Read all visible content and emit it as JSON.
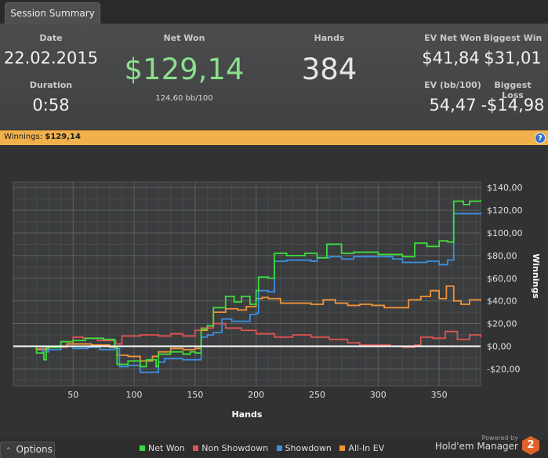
{
  "tab": {
    "label": "Session Summary"
  },
  "summary": {
    "date_label": "Date",
    "date_value": "22.02.2015",
    "duration_label": "Duration",
    "duration_value": "0:58",
    "netwon_label": "Net Won",
    "netwon_value": "$129,14",
    "netwon_sub": "124,60 bb/100",
    "hands_label": "Hands",
    "hands_value": "384",
    "evnet_label": "EV Net Won",
    "evnet_value": "$41,84",
    "evbb_label": "EV (bb/100)",
    "evbb_value": "54,47",
    "bigwin_label": "Biggest Win",
    "bigwin_value": "$31,01",
    "bigloss_label": "Biggest Loss",
    "bigloss_value": "-$14,98"
  },
  "bar": {
    "prefix": "Winnings:",
    "value": "$129,14",
    "help": "?"
  },
  "colors": {
    "net_won": "#3ddc3d",
    "non_showdown": "#e25252",
    "showdown": "#3b8fe0",
    "allin_ev": "#f09238",
    "accent": "#f0b14c"
  },
  "chart_data": {
    "type": "line",
    "title": "Winnings",
    "xlabel": "Hands",
    "ylabel": "Winnings",
    "xlim": [
      1,
      384
    ],
    "ylim": [
      -35,
      145
    ],
    "x_ticks": [
      50,
      100,
      150,
      200,
      250,
      300,
      350
    ],
    "x_tick_labels": [
      "50",
      "100",
      "150",
      "200",
      "250",
      "300",
      "350"
    ],
    "y_ticks": [
      -20,
      0,
      20,
      40,
      60,
      80,
      100,
      120,
      140
    ],
    "y_tick_labels": [
      "-$20,00",
      "$0,00",
      "$20,00",
      "$40,00",
      "$60,00",
      "$80,00",
      "$100,00",
      "$120,00",
      "$140,00"
    ],
    "series": [
      {
        "name": "Net Won",
        "color": "#3ddc3d",
        "points": [
          [
            1,
            0
          ],
          [
            15,
            0
          ],
          [
            20,
            -6
          ],
          [
            26,
            -12
          ],
          [
            28,
            -1
          ],
          [
            40,
            4
          ],
          [
            50,
            5
          ],
          [
            60,
            7
          ],
          [
            75,
            6
          ],
          [
            84,
            -1
          ],
          [
            86,
            -16
          ],
          [
            95,
            -13
          ],
          [
            105,
            -18
          ],
          [
            110,
            -12
          ],
          [
            118,
            -18
          ],
          [
            120,
            -7
          ],
          [
            130,
            -5
          ],
          [
            140,
            -7
          ],
          [
            146,
            -5
          ],
          [
            150,
            -6
          ],
          [
            155,
            15
          ],
          [
            160,
            18
          ],
          [
            165,
            34
          ],
          [
            175,
            44
          ],
          [
            182,
            39
          ],
          [
            188,
            44
          ],
          [
            195,
            37
          ],
          [
            200,
            49
          ],
          [
            202,
            61
          ],
          [
            210,
            60
          ],
          [
            215,
            82
          ],
          [
            225,
            80
          ],
          [
            235,
            80
          ],
          [
            240,
            82
          ],
          [
            250,
            78
          ],
          [
            258,
            90
          ],
          [
            270,
            82
          ],
          [
            280,
            83
          ],
          [
            300,
            81
          ],
          [
            315,
            81
          ],
          [
            320,
            79
          ],
          [
            330,
            91
          ],
          [
            340,
            88
          ],
          [
            350,
            93
          ],
          [
            357,
            92
          ],
          [
            362,
            128
          ],
          [
            370,
            125
          ],
          [
            375,
            128
          ],
          [
            384,
            129
          ]
        ]
      },
      {
        "name": "Non Showdown",
        "color": "#e25252",
        "points": [
          [
            1,
            0
          ],
          [
            20,
            -2
          ],
          [
            30,
            -1
          ],
          [
            45,
            2
          ],
          [
            50,
            8
          ],
          [
            58,
            7
          ],
          [
            70,
            5
          ],
          [
            85,
            2
          ],
          [
            90,
            9
          ],
          [
            105,
            10
          ],
          [
            120,
            9
          ],
          [
            130,
            11
          ],
          [
            140,
            9
          ],
          [
            150,
            14
          ],
          [
            155,
            16
          ],
          [
            165,
            20
          ],
          [
            175,
            16
          ],
          [
            188,
            14
          ],
          [
            200,
            11
          ],
          [
            215,
            8
          ],
          [
            230,
            10
          ],
          [
            245,
            8
          ],
          [
            260,
            6
          ],
          [
            275,
            3
          ],
          [
            285,
            1
          ],
          [
            295,
            1
          ],
          [
            310,
            0
          ],
          [
            320,
            -1
          ],
          [
            330,
            1
          ],
          [
            335,
            8
          ],
          [
            345,
            7
          ],
          [
            355,
            13
          ],
          [
            365,
            6
          ],
          [
            375,
            10
          ],
          [
            384,
            8
          ]
        ]
      },
      {
        "name": "Showdown",
        "color": "#3b8fe0",
        "points": [
          [
            1,
            0
          ],
          [
            10,
            0
          ],
          [
            25,
            -5
          ],
          [
            30,
            -3
          ],
          [
            40,
            0
          ],
          [
            50,
            -2
          ],
          [
            62,
            -1
          ],
          [
            72,
            -3
          ],
          [
            84,
            -2
          ],
          [
            88,
            -18
          ],
          [
            95,
            -17
          ],
          [
            105,
            -23
          ],
          [
            115,
            -23
          ],
          [
            120,
            -14
          ],
          [
            125,
            -11
          ],
          [
            140,
            -12
          ],
          [
            150,
            -12
          ],
          [
            155,
            8
          ],
          [
            160,
            10
          ],
          [
            165,
            12
          ],
          [
            172,
            24
          ],
          [
            180,
            22
          ],
          [
            188,
            22
          ],
          [
            195,
            28
          ],
          [
            200,
            29
          ],
          [
            202,
            49
          ],
          [
            210,
            48
          ],
          [
            215,
            75
          ],
          [
            225,
            76
          ],
          [
            235,
            76
          ],
          [
            245,
            75
          ],
          [
            250,
            78
          ],
          [
            260,
            79
          ],
          [
            270,
            77
          ],
          [
            280,
            79
          ],
          [
            295,
            79
          ],
          [
            305,
            79
          ],
          [
            312,
            77
          ],
          [
            320,
            74
          ],
          [
            330,
            74
          ],
          [
            340,
            75
          ],
          [
            350,
            72
          ],
          [
            357,
            76
          ],
          [
            362,
            117
          ],
          [
            370,
            117
          ],
          [
            375,
            117
          ],
          [
            384,
            118
          ]
        ]
      },
      {
        "name": "All-In EV",
        "color": "#f09238",
        "points": [
          [
            1,
            0
          ],
          [
            15,
            0
          ],
          [
            20,
            -3
          ],
          [
            30,
            0
          ],
          [
            45,
            2
          ],
          [
            55,
            2
          ],
          [
            65,
            1
          ],
          [
            80,
            -1
          ],
          [
            86,
            -8
          ],
          [
            95,
            -9
          ],
          [
            105,
            -13
          ],
          [
            115,
            -9
          ],
          [
            120,
            -5
          ],
          [
            130,
            -2
          ],
          [
            140,
            -3
          ],
          [
            150,
            -2
          ],
          [
            155,
            14
          ],
          [
            160,
            18
          ],
          [
            165,
            30
          ],
          [
            175,
            33
          ],
          [
            185,
            32
          ],
          [
            192,
            35
          ],
          [
            200,
            42
          ],
          [
            205,
            43
          ],
          [
            210,
            42
          ],
          [
            220,
            38
          ],
          [
            235,
            38
          ],
          [
            245,
            37
          ],
          [
            255,
            41
          ],
          [
            265,
            38
          ],
          [
            275,
            36
          ],
          [
            285,
            37
          ],
          [
            295,
            36
          ],
          [
            305,
            34
          ],
          [
            315,
            34
          ],
          [
            325,
            41
          ],
          [
            335,
            44
          ],
          [
            343,
            49
          ],
          [
            350,
            42
          ],
          [
            356,
            53
          ],
          [
            362,
            40
          ],
          [
            368,
            37
          ],
          [
            375,
            41
          ],
          [
            384,
            40
          ]
        ]
      }
    ]
  },
  "legend": {
    "items": [
      "Net Won",
      "Non Showdown",
      "Showdown",
      "All-In EV"
    ]
  },
  "footer": {
    "options_label": "Options",
    "powered_by": "Powered by",
    "product": "Hold'em Manager",
    "badge": "2"
  }
}
